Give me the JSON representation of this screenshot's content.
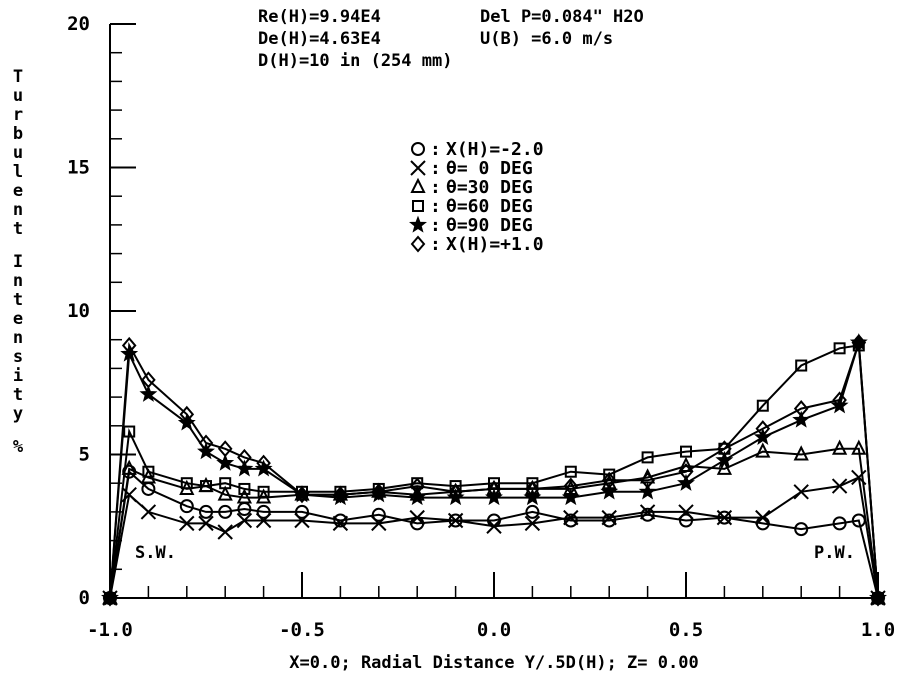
{
  "header": {
    "line1_left": "Re(H)=9.94E4",
    "line1_right": "Del P=0.084\" H2O",
    "line2_left": "De(H)=4.63E4",
    "line2_right": "U(B) =6.0 m/s",
    "line3": "D(H)=10 in (254 mm)"
  },
  "chart_data": {
    "type": "line",
    "title": "",
    "xlabel": "X=0.0; Radial Distance Y/.5D(H); Z= 0.00",
    "ylabel": "Turbulent Intensity %",
    "xlim": [
      -1.0,
      1.0
    ],
    "ylim": [
      0,
      20
    ],
    "x_ticks": [
      -1.0,
      -0.5,
      0.0,
      0.5,
      1.0
    ],
    "x_tick_labels": [
      "-1.0",
      "-0.5",
      "0.0",
      "0.5",
      "1.0"
    ],
    "y_ticks": [
      0,
      5,
      10,
      15,
      20
    ],
    "y_tick_labels": [
      "0",
      "5",
      "10",
      "15",
      "20"
    ],
    "grid": false,
    "legend_position": "top-center",
    "annotations": [
      "S.W.",
      "P.W."
    ],
    "x": [
      -1.0,
      -0.95,
      -0.9,
      -0.8,
      -0.75,
      -0.7,
      -0.65,
      -0.6,
      -0.5,
      -0.4,
      -0.3,
      -0.2,
      -0.1,
      0.0,
      0.1,
      0.2,
      0.3,
      0.4,
      0.5,
      0.6,
      0.7,
      0.8,
      0.9,
      0.95,
      1.0
    ],
    "series": [
      {
        "name": "X(H)=-2.0",
        "marker": "circle",
        "values": [
          0,
          4.4,
          3.8,
          3.2,
          3.0,
          3.0,
          3.1,
          3.0,
          3.0,
          2.7,
          2.9,
          2.6,
          2.7,
          2.7,
          3.0,
          2.7,
          2.7,
          2.9,
          2.7,
          2.8,
          2.6,
          2.4,
          2.6,
          2.7,
          0
        ]
      },
      {
        "name": "θ= 0 DEG",
        "marker": "x",
        "values": [
          0,
          3.6,
          3.0,
          2.6,
          2.6,
          2.3,
          2.7,
          2.7,
          2.7,
          2.6,
          2.6,
          2.8,
          2.7,
          2.5,
          2.6,
          2.8,
          2.8,
          3.0,
          3.0,
          2.8,
          2.8,
          3.7,
          3.9,
          4.2,
          0
        ]
      },
      {
        "name": "θ=30 DEG",
        "marker": "triangle",
        "values": [
          0,
          4.5,
          4.2,
          3.8,
          3.9,
          3.6,
          3.5,
          3.5,
          3.6,
          3.6,
          3.7,
          3.6,
          3.7,
          3.8,
          3.8,
          3.8,
          4.0,
          4.2,
          4.6,
          4.5,
          5.1,
          5.0,
          5.2,
          5.2,
          0
        ]
      },
      {
        "name": "θ=60 DEG",
        "marker": "square",
        "values": [
          0,
          5.8,
          4.4,
          4.0,
          3.9,
          4.0,
          3.8,
          3.7,
          3.7,
          3.7,
          3.8,
          4.0,
          3.9,
          4.0,
          4.0,
          4.4,
          4.3,
          4.9,
          5.1,
          5.2,
          6.7,
          8.1,
          8.7,
          8.8,
          0
        ]
      },
      {
        "name": "θ=90 DEG",
        "marker": "star",
        "values": [
          0,
          8.5,
          7.1,
          6.1,
          5.1,
          4.7,
          4.5,
          4.5,
          3.6,
          3.5,
          3.6,
          3.5,
          3.5,
          3.5,
          3.5,
          3.5,
          3.7,
          3.7,
          4.0,
          4.8,
          5.6,
          6.2,
          6.7,
          8.9,
          0
        ]
      },
      {
        "name": "X(H)=+1.0",
        "marker": "diamond",
        "values": [
          0,
          8.8,
          7.6,
          6.4,
          5.4,
          5.2,
          4.9,
          4.7,
          3.6,
          3.6,
          3.7,
          3.9,
          3.7,
          3.8,
          3.8,
          3.9,
          4.1,
          4.1,
          4.4,
          5.2,
          5.9,
          6.6,
          6.9,
          8.9,
          0
        ]
      }
    ]
  }
}
